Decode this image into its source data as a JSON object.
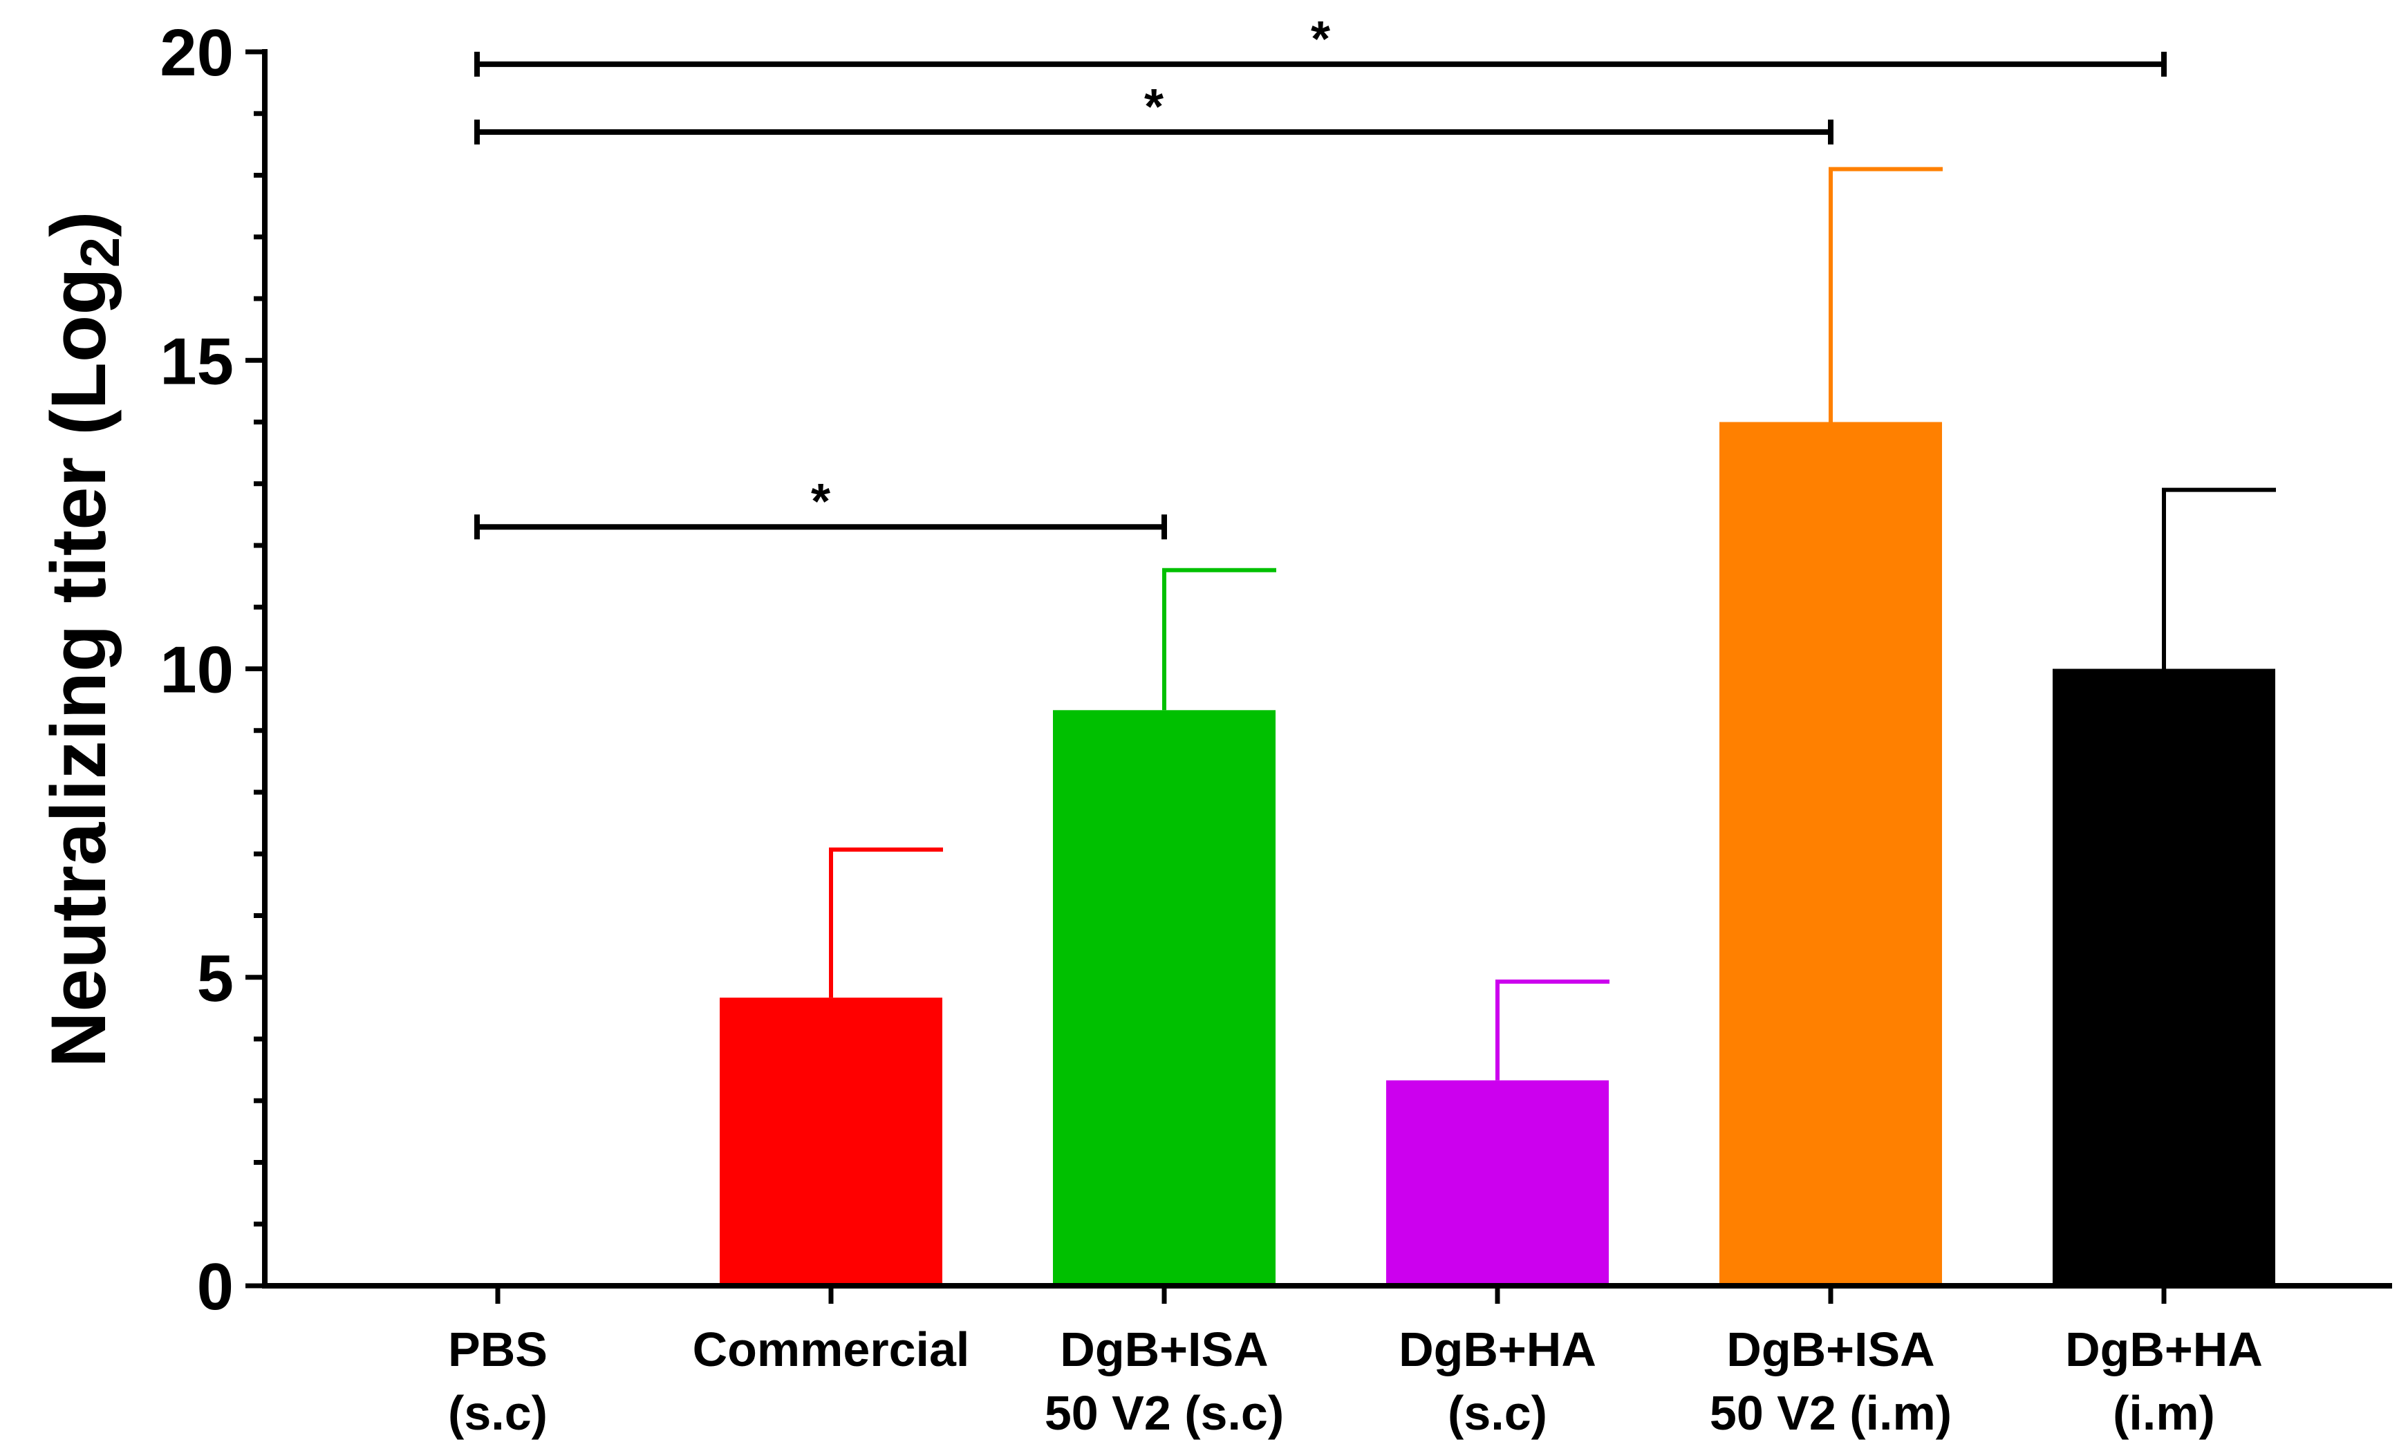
{
  "chart_data": {
    "type": "bar",
    "title": "",
    "xlabel": "",
    "ylabel": {
      "main": "Neutralizing titer (Log",
      "subscript": "2",
      "close": ")"
    },
    "ylim": [
      0,
      20
    ],
    "y_major_ticks": [
      0,
      5,
      10,
      15,
      20
    ],
    "y_minor_step": 1,
    "categories": [
      {
        "line1": "PBS",
        "line2": "(s.c)"
      },
      {
        "line1": "Commercial",
        "line2": ""
      },
      {
        "line1": "DgB+ISA",
        "line2": "50 V2 (s.c)"
      },
      {
        "line1": "DgB+HA",
        "line2": "(s.c)"
      },
      {
        "line1": "DgB+ISA",
        "line2": "50 V2 (i.m)"
      },
      {
        "line1": "DgB+HA",
        "line2": "(i.m)"
      }
    ],
    "values": [
      0,
      4.67,
      9.33,
      3.33,
      14.0,
      10.0
    ],
    "errors": [
      0,
      2.4,
      2.27,
      1.6,
      4.1,
      2.9
    ],
    "colors": [
      "#000000",
      "#ff0000",
      "#00c000",
      "#cc00ee",
      "#ff8000",
      "#000000"
    ],
    "significance": [
      {
        "from": 0,
        "to": 2,
        "y": 12.3,
        "label": "*"
      },
      {
        "from": 0,
        "to": 4,
        "y": 18.7,
        "label": "*"
      },
      {
        "from": 0,
        "to": 5,
        "y": 19.8,
        "label": "*"
      }
    ]
  }
}
